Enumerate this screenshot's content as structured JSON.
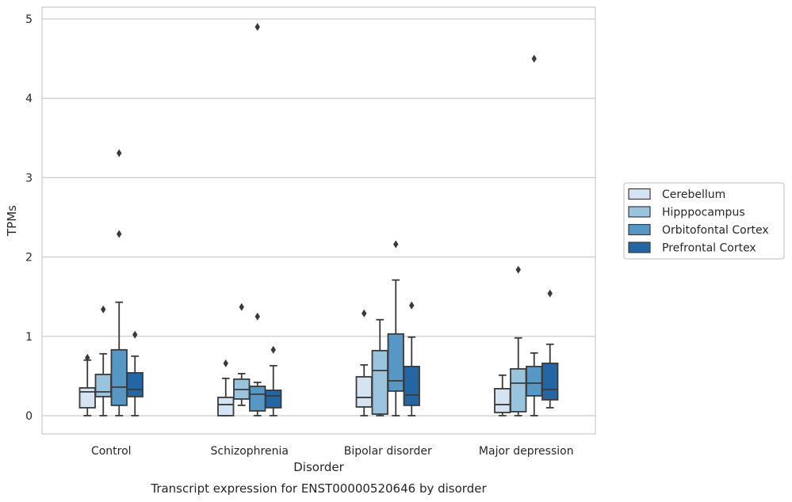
{
  "chart_data": {
    "type": "boxplot",
    "title": "",
    "caption": "Transcript expression for ENST00000520646 by disorder",
    "xlabel": "Disorder",
    "ylabel": "TPMs",
    "ylim": [
      -0.23,
      5.15
    ],
    "yticks": [
      0,
      1,
      2,
      3,
      4,
      5
    ],
    "grid": "horizontal",
    "legend_position": "right",
    "categories": [
      "Control",
      "Schizophrenia",
      "Bipolar disorder",
      "Major depression"
    ],
    "series": [
      {
        "name": "Cerebellum",
        "color": "#d6e3f2",
        "boxes": [
          {
            "whislo": 0.0,
            "q1": 0.1,
            "med": 0.3,
            "q3": 0.35,
            "whishi": 0.7,
            "fliers": [
              0.73
            ]
          },
          {
            "whislo": 0.0,
            "q1": 0.0,
            "med": 0.14,
            "q3": 0.23,
            "whishi": 0.47,
            "fliers": [
              0.66
            ]
          },
          {
            "whislo": 0.0,
            "q1": 0.11,
            "med": 0.23,
            "q3": 0.49,
            "whishi": 0.64,
            "fliers": [
              1.29
            ]
          },
          {
            "whislo": 0.0,
            "q1": 0.04,
            "med": 0.14,
            "q3": 0.34,
            "whishi": 0.51,
            "fliers": []
          }
        ]
      },
      {
        "name": "Hipppocampus",
        "color": "#9ac3de",
        "boxes": [
          {
            "whislo": 0.0,
            "q1": 0.24,
            "med": 0.3,
            "q3": 0.52,
            "whishi": 0.78,
            "fliers": [
              1.34
            ]
          },
          {
            "whislo": 0.13,
            "q1": 0.21,
            "med": 0.33,
            "q3": 0.46,
            "whishi": 0.53,
            "fliers": [
              1.37
            ]
          },
          {
            "whislo": 0.0,
            "q1": 0.02,
            "med": 0.57,
            "q3": 0.82,
            "whishi": 1.21,
            "fliers": []
          },
          {
            "whislo": 0.0,
            "q1": 0.05,
            "med": 0.41,
            "q3": 0.59,
            "whishi": 0.98,
            "fliers": [
              1.84
            ]
          }
        ]
      },
      {
        "name": "Orbitofontal Cortex",
        "color": "#5797c5",
        "boxes": [
          {
            "whislo": 0.0,
            "q1": 0.13,
            "med": 0.36,
            "q3": 0.83,
            "whishi": 1.43,
            "fliers": [
              2.29,
              3.31
            ]
          },
          {
            "whislo": 0.0,
            "q1": 0.06,
            "med": 0.27,
            "q3": 0.37,
            "whishi": 0.42,
            "fliers": [
              1.25,
              4.9
            ]
          },
          {
            "whislo": 0.0,
            "q1": 0.31,
            "med": 0.44,
            "q3": 1.03,
            "whishi": 1.71,
            "fliers": [
              2.16
            ]
          },
          {
            "whislo": 0.0,
            "q1": 0.25,
            "med": 0.41,
            "q3": 0.62,
            "whishi": 0.79,
            "fliers": [
              4.5
            ]
          }
        ]
      },
      {
        "name": "Prefrontal Cortex",
        "color": "#2466a4",
        "boxes": [
          {
            "whislo": 0.0,
            "q1": 0.24,
            "med": 0.33,
            "q3": 0.54,
            "whishi": 0.75,
            "fliers": [
              1.02
            ]
          },
          {
            "whislo": 0.0,
            "q1": 0.1,
            "med": 0.25,
            "q3": 0.32,
            "whishi": 0.63,
            "fliers": [
              0.83
            ]
          },
          {
            "whislo": 0.0,
            "q1": 0.13,
            "med": 0.26,
            "q3": 0.62,
            "whishi": 0.99,
            "fliers": [
              1.39
            ]
          },
          {
            "whislo": 0.1,
            "q1": 0.2,
            "med": 0.33,
            "q3": 0.66,
            "whishi": 0.9,
            "fliers": [
              1.54
            ]
          }
        ]
      }
    ]
  }
}
